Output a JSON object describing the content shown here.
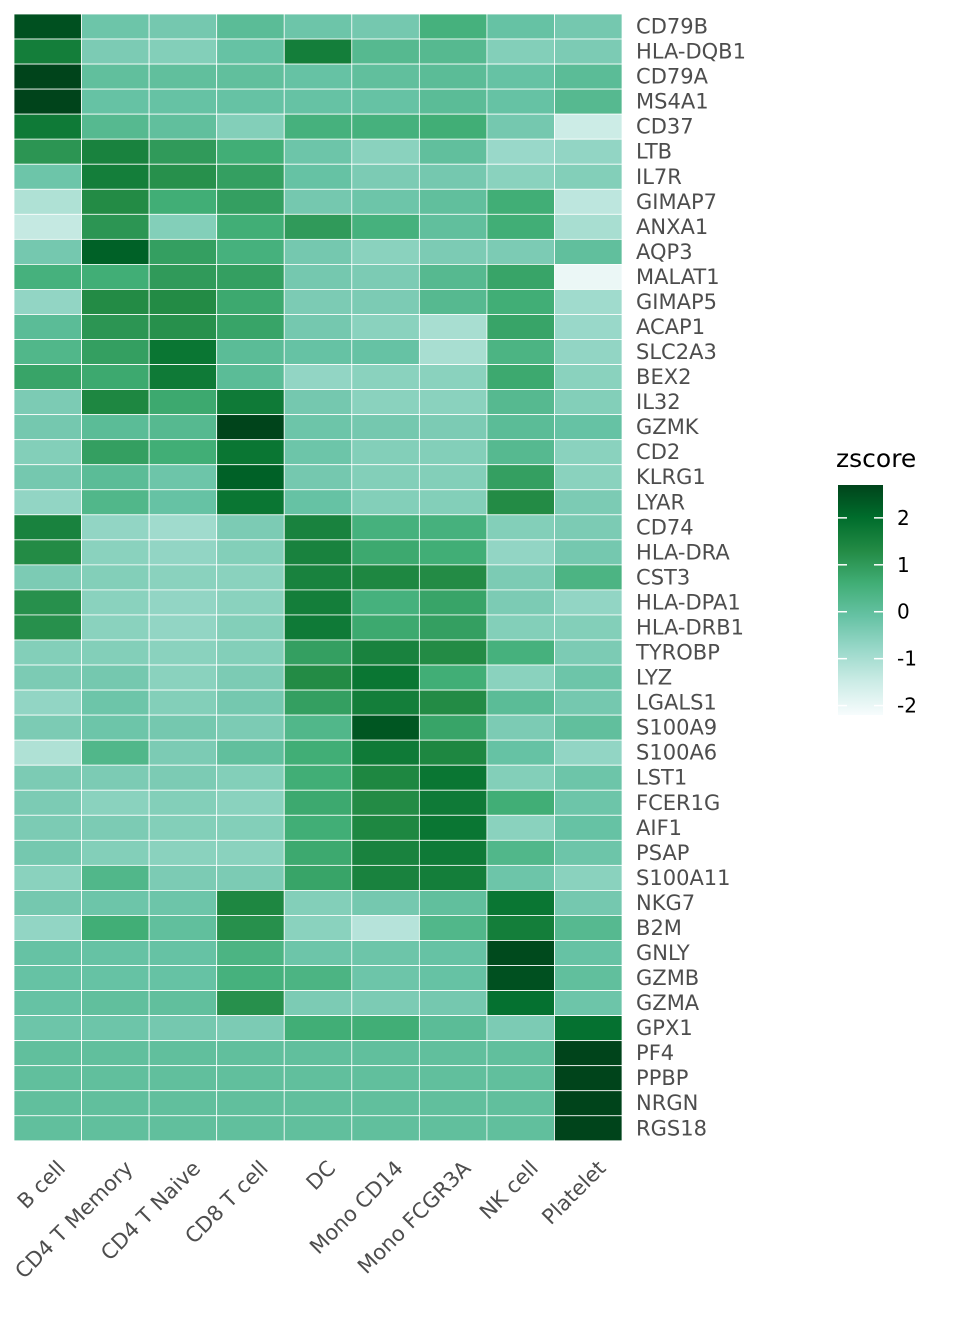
{
  "chart_data": {
    "type": "heatmap",
    "x_categories": [
      "B cell",
      "CD4 T Memory",
      "CD4 T Naive",
      "CD8 T cell",
      "DC",
      "Mono CD14",
      "Mono FCGR3A",
      "NK cell",
      "Platelet"
    ],
    "y_categories": [
      "CD79B",
      "HLA-DQB1",
      "CD79A",
      "MS4A1",
      "CD37",
      "LTB",
      "IL7R",
      "GIMAP7",
      "ANXA1",
      "AQP3",
      "MALAT1",
      "GIMAP5",
      "ACAP1",
      "SLC2A3",
      "BEX2",
      "IL32",
      "GZMK",
      "CD2",
      "KLRG1",
      "LYAR",
      "CD74",
      "HLA-DRA",
      "CST3",
      "HLA-DPA1",
      "HLA-DRB1",
      "TYROBP",
      "LYZ",
      "LGALS1",
      "S100A9",
      "S100A6",
      "LST1",
      "FCER1G",
      "AIF1",
      "PSAP",
      "S100A11",
      "NKG7",
      "B2M",
      "GNLY",
      "GZMB",
      "GZMA",
      "GPX1",
      "PF4",
      "PPBP",
      "NRGN",
      "RGS18"
    ],
    "values": [
      [
        2.5,
        -0.2,
        -0.3,
        0.1,
        -0.2,
        -0.3,
        0.5,
        -0.1,
        -0.3
      ],
      [
        1.6,
        -0.4,
        -0.5,
        -0.1,
        1.6,
        0.2,
        0.2,
        -0.5,
        -0.4
      ],
      [
        2.7,
        0.0,
        0.0,
        0.0,
        -0.1,
        0.0,
        0.1,
        -0.1,
        0.1
      ],
      [
        2.7,
        -0.1,
        -0.1,
        -0.1,
        -0.1,
        -0.1,
        0.1,
        -0.1,
        0.2
      ],
      [
        1.7,
        0.2,
        0.0,
        -0.5,
        0.5,
        0.5,
        0.6,
        -0.3,
        -1.5
      ],
      [
        1.1,
        1.5,
        1.0,
        0.6,
        -0.2,
        -0.6,
        0.0,
        -0.8,
        -0.7
      ],
      [
        -0.2,
        1.6,
        1.2,
        0.9,
        -0.1,
        -0.4,
        -0.3,
        -0.6,
        -0.5
      ],
      [
        -1.1,
        1.3,
        0.6,
        0.9,
        -0.3,
        -0.2,
        0.0,
        0.6,
        -1.3
      ],
      [
        -1.4,
        1.1,
        -0.5,
        0.6,
        1.0,
        0.5,
        0.0,
        0.6,
        -1.0
      ],
      [
        -0.3,
        2.2,
        0.9,
        0.5,
        -0.3,
        -0.6,
        -0.4,
        -0.4,
        0.0
      ],
      [
        0.5,
        0.6,
        1.0,
        0.9,
        -0.3,
        -0.4,
        0.2,
        0.8,
        -2.0
      ],
      [
        -0.7,
        1.3,
        1.3,
        0.7,
        -0.4,
        -0.4,
        0.2,
        0.6,
        -0.9
      ],
      [
        0.1,
        1.1,
        1.2,
        0.8,
        -0.3,
        -0.6,
        -1.0,
        0.8,
        -0.8
      ],
      [
        0.3,
        0.9,
        1.8,
        0.1,
        -0.1,
        -0.1,
        -1.0,
        0.4,
        -0.7
      ],
      [
        0.8,
        0.7,
        1.7,
        0.1,
        -0.7,
        -0.6,
        -0.6,
        0.7,
        -0.6
      ],
      [
        -0.4,
        1.4,
        0.7,
        1.7,
        -0.3,
        -0.6,
        -0.6,
        0.2,
        -0.5
      ],
      [
        -0.3,
        0.1,
        0.2,
        2.8,
        -0.2,
        -0.3,
        -0.4,
        0.1,
        -0.1
      ],
      [
        -0.5,
        0.9,
        0.6,
        1.8,
        -0.2,
        -0.5,
        -0.5,
        0.2,
        -0.6
      ],
      [
        -0.3,
        0.1,
        -0.2,
        2.2,
        -0.3,
        -0.5,
        -0.5,
        0.9,
        -0.6
      ],
      [
        -0.7,
        0.3,
        -0.1,
        1.8,
        -0.1,
        -0.5,
        -0.5,
        1.3,
        -0.4
      ],
      [
        1.5,
        -0.7,
        -0.9,
        -0.4,
        1.5,
        0.5,
        0.5,
        -0.5,
        -0.4
      ],
      [
        1.3,
        -0.6,
        -0.7,
        -0.5,
        1.5,
        0.7,
        0.6,
        -0.7,
        -0.3
      ],
      [
        -0.4,
        -0.5,
        -0.6,
        -0.6,
        1.5,
        1.4,
        1.3,
        -0.4,
        0.4
      ],
      [
        1.2,
        -0.6,
        -0.7,
        -0.6,
        1.6,
        0.5,
        0.8,
        -0.4,
        -0.7
      ],
      [
        1.2,
        -0.6,
        -0.7,
        -0.5,
        1.7,
        0.7,
        0.9,
        -0.5,
        -0.5
      ],
      [
        -0.5,
        -0.5,
        -0.6,
        -0.5,
        0.9,
        1.5,
        1.3,
        0.5,
        -0.4
      ],
      [
        -0.4,
        -0.3,
        -0.6,
        -0.4,
        1.3,
        1.8,
        0.6,
        -0.6,
        -0.2
      ],
      [
        -0.7,
        -0.2,
        -0.5,
        -0.3,
        0.9,
        1.6,
        1.3,
        0.1,
        -0.3
      ],
      [
        -0.4,
        -0.2,
        -0.3,
        -0.4,
        0.3,
        2.4,
        0.8,
        -0.4,
        0.0
      ],
      [
        -1.1,
        0.3,
        -0.4,
        0.0,
        0.6,
        1.7,
        1.4,
        -0.1,
        -0.7
      ],
      [
        -0.4,
        -0.4,
        -0.4,
        -0.5,
        0.6,
        1.4,
        1.8,
        -0.5,
        -0.2
      ],
      [
        -0.4,
        -0.6,
        -0.5,
        -0.6,
        0.7,
        1.3,
        1.7,
        0.6,
        -0.2
      ],
      [
        -0.4,
        -0.4,
        -0.5,
        -0.5,
        0.6,
        1.4,
        1.8,
        -0.6,
        -0.1
      ],
      [
        -0.3,
        -0.5,
        -0.6,
        -0.6,
        0.7,
        1.5,
        1.7,
        0.3,
        -0.2
      ],
      [
        -0.6,
        0.3,
        -0.4,
        -0.4,
        0.8,
        1.5,
        1.6,
        -0.2,
        -0.6
      ],
      [
        -0.3,
        -0.2,
        -0.2,
        1.4,
        -0.5,
        -0.3,
        0.0,
        1.8,
        -0.3
      ],
      [
        -0.7,
        0.6,
        0.0,
        1.2,
        -0.6,
        -1.2,
        0.3,
        1.6,
        0.2
      ],
      [
        -0.1,
        -0.1,
        -0.1,
        0.4,
        -0.2,
        -0.2,
        -0.1,
        2.6,
        -0.1
      ],
      [
        -0.1,
        -0.1,
        -0.1,
        0.5,
        0.4,
        -0.2,
        -0.1,
        2.5,
        0.0
      ],
      [
        -0.1,
        0.0,
        0.0,
        1.2,
        -0.4,
        -0.4,
        -0.3,
        1.9,
        -0.2
      ],
      [
        -0.2,
        -0.2,
        -0.3,
        -0.4,
        0.6,
        0.6,
        0.1,
        -0.4,
        1.9
      ],
      [
        0.0,
        0.0,
        0.0,
        0.0,
        0.0,
        0.0,
        0.0,
        0.0,
        2.7
      ],
      [
        0.0,
        0.0,
        0.0,
        0.0,
        0.0,
        0.0,
        0.0,
        0.0,
        2.7
      ],
      [
        0.0,
        0.0,
        0.0,
        0.0,
        0.0,
        0.0,
        0.0,
        0.0,
        2.7
      ],
      [
        0.0,
        0.0,
        0.0,
        0.0,
        0.0,
        0.0,
        0.0,
        0.0,
        2.7
      ]
    ],
    "legend": {
      "title": "zscore",
      "ticks": [
        2,
        1,
        0,
        -1,
        -2
      ],
      "range": [
        -2.2,
        2.7
      ],
      "colors": [
        "#f7fcfd",
        "#ccece6",
        "#99d8c9",
        "#66c2a4",
        "#41ae76",
        "#238b45",
        "#006d2c",
        "#00441b"
      ]
    },
    "grid": true,
    "legend_position": "right"
  }
}
